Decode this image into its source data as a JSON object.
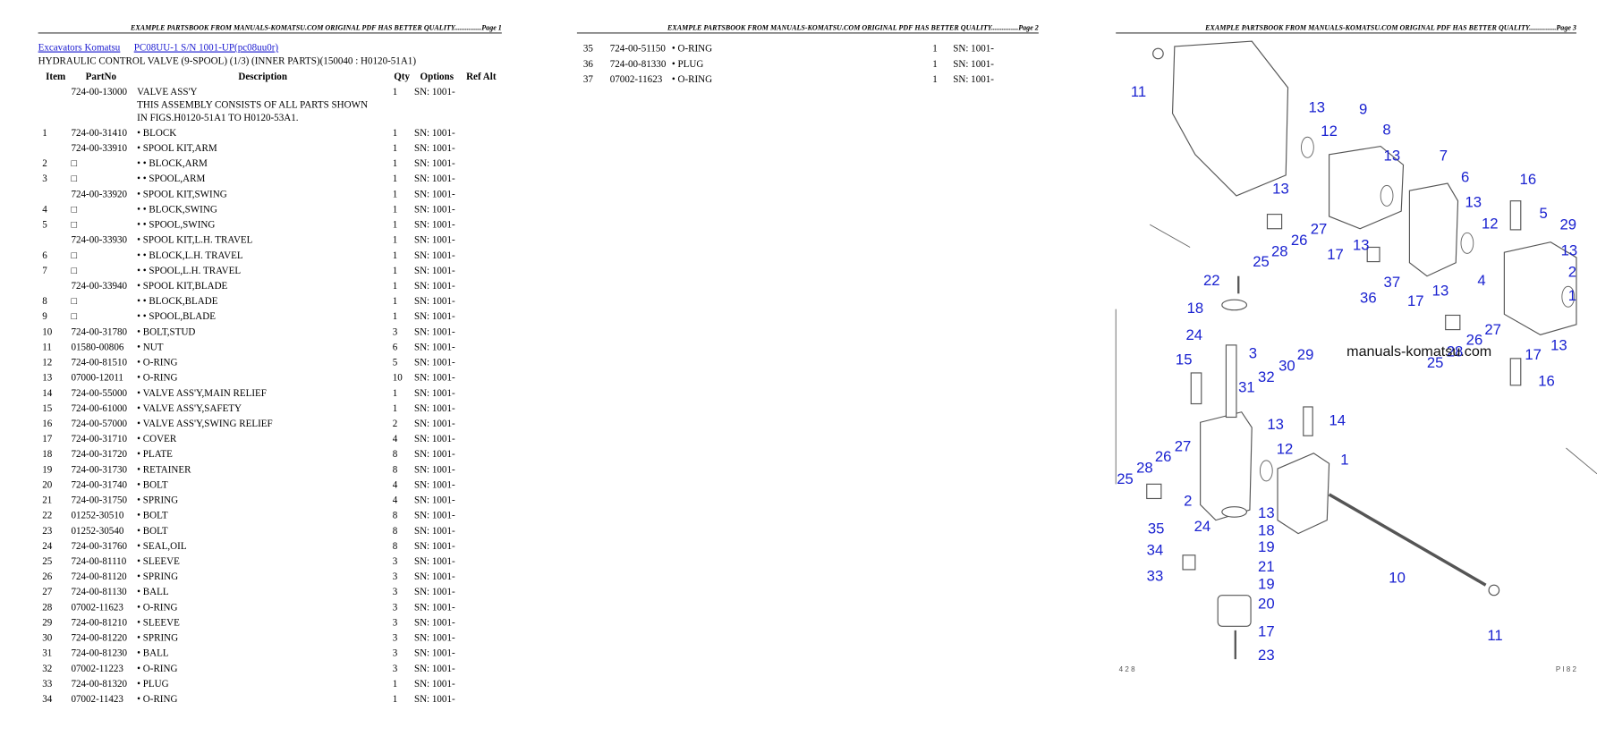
{
  "pages": [
    {
      "header": "EXAMPLE PARTSBOOK FROM MANUALS-KOMATSU.COM ORIGINAL PDF HAS BETTER QUALITY...............Page 1",
      "links": [
        "Excavators Komatsu",
        "PC08UU-1 S/N 1001-UP(pc08uu0r)"
      ],
      "title": "HYDRAULIC CONTROL VALVE (9-SPOOL) (1/3) (INNER PARTS)(150040 : H0120-51A1)",
      "table": {
        "columns": [
          "Item",
          "PartNo",
          "Description",
          "Qty",
          "Options",
          "Ref Alt"
        ],
        "rows": [
          {
            "part": "724-00-13000",
            "desc": "VALVE ASS'Y",
            "qty": "1",
            "options": "SN: 1001-",
            "note": [
              "THIS ASSEMBLY CONSISTS OF ALL PARTS SHOWN",
              "IN FIGS.H0120-51A1 TO H0120-53A1."
            ]
          },
          {
            "item": "1",
            "part": "724-00-31410",
            "desc": "• BLOCK",
            "qty": "1",
            "options": "SN: 1001-"
          },
          {
            "part": "724-00-33910",
            "desc": "• SPOOL KIT,ARM",
            "qty": "1",
            "options": "SN: 1001-"
          },
          {
            "item": "2",
            "part": "□",
            "desc": "• • BLOCK,ARM",
            "qty": "1",
            "options": "SN: 1001-"
          },
          {
            "item": "3",
            "part": "□",
            "desc": "• • SPOOL,ARM",
            "qty": "1",
            "options": "SN: 1001-"
          },
          {
            "part": "724-00-33920",
            "desc": "• SPOOL KIT,SWING",
            "qty": "1",
            "options": "SN: 1001-"
          },
          {
            "item": "4",
            "part": "□",
            "desc": "• • BLOCK,SWING",
            "qty": "1",
            "options": "SN: 1001-"
          },
          {
            "item": "5",
            "part": "□",
            "desc": "• • SPOOL,SWING",
            "qty": "1",
            "options": "SN: 1001-"
          },
          {
            "part": "724-00-33930",
            "desc": "• SPOOL KIT,L.H. TRAVEL",
            "qty": "1",
            "options": "SN: 1001-"
          },
          {
            "item": "6",
            "part": "□",
            "desc": "• • BLOCK,L.H. TRAVEL",
            "qty": "1",
            "options": "SN: 1001-"
          },
          {
            "item": "7",
            "part": "□",
            "desc": "• • SPOOL,L.H. TRAVEL",
            "qty": "1",
            "options": "SN: 1001-"
          },
          {
            "part": "724-00-33940",
            "desc": "• SPOOL KIT,BLADE",
            "qty": "1",
            "options": "SN: 1001-"
          },
          {
            "item": "8",
            "part": "□",
            "desc": "• • BLOCK,BLADE",
            "qty": "1",
            "options": "SN: 1001-"
          },
          {
            "item": "9",
            "part": "□",
            "desc": "• • SPOOL,BLADE",
            "qty": "1",
            "options": "SN: 1001-"
          },
          {
            "item": "10",
            "part": "724-00-31780",
            "desc": "• BOLT,STUD",
            "qty": "3",
            "options": "SN: 1001-"
          },
          {
            "item": "11",
            "part": "01580-00806",
            "desc": "• NUT",
            "qty": "6",
            "options": "SN: 1001-"
          },
          {
            "item": "12",
            "part": "724-00-81510",
            "desc": "• O-RING",
            "qty": "5",
            "options": "SN: 1001-"
          },
          {
            "item": "13",
            "part": "07000-12011",
            "desc": "• O-RING",
            "qty": "10",
            "options": "SN: 1001-"
          },
          {
            "item": "14",
            "part": "724-00-55000",
            "desc": "• VALVE ASS'Y,MAIN RELIEF",
            "qty": "1",
            "options": "SN: 1001-"
          },
          {
            "item": "15",
            "part": "724-00-61000",
            "desc": "• VALVE ASS'Y,SAFETY",
            "qty": "1",
            "options": "SN: 1001-"
          },
          {
            "item": "16",
            "part": "724-00-57000",
            "desc": "• VALVE ASS'Y,SWING RELIEF",
            "qty": "2",
            "options": "SN: 1001-"
          },
          {
            "item": "17",
            "part": "724-00-31710",
            "desc": "• COVER",
            "qty": "4",
            "options": "SN: 1001-"
          },
          {
            "item": "18",
            "part": "724-00-31720",
            "desc": "• PLATE",
            "qty": "8",
            "options": "SN: 1001-"
          },
          {
            "item": "19",
            "part": "724-00-31730",
            "desc": "• RETAINER",
            "qty": "8",
            "options": "SN: 1001-"
          },
          {
            "item": "20",
            "part": "724-00-31740",
            "desc": "• BOLT",
            "qty": "4",
            "options": "SN: 1001-"
          },
          {
            "item": "21",
            "part": "724-00-31750",
            "desc": "• SPRING",
            "qty": "4",
            "options": "SN: 1001-"
          },
          {
            "item": "22",
            "part": "01252-30510",
            "desc": "• BOLT",
            "qty": "8",
            "options": "SN: 1001-"
          },
          {
            "item": "23",
            "part": "01252-30540",
            "desc": "• BOLT",
            "qty": "8",
            "options": "SN: 1001-"
          },
          {
            "item": "24",
            "part": "724-00-31760",
            "desc": "• SEAL,OIL",
            "qty": "8",
            "options": "SN: 1001-"
          },
          {
            "item": "25",
            "part": "724-00-81110",
            "desc": "• SLEEVE",
            "qty": "3",
            "options": "SN: 1001-"
          },
          {
            "item": "26",
            "part": "724-00-81120",
            "desc": "• SPRING",
            "qty": "3",
            "options": "SN: 1001-"
          },
          {
            "item": "27",
            "part": "724-00-81130",
            "desc": "• BALL",
            "qty": "3",
            "options": "SN: 1001-"
          },
          {
            "item": "28",
            "part": "07002-11623",
            "desc": "• O-RING",
            "qty": "3",
            "options": "SN: 1001-"
          },
          {
            "item": "29",
            "part": "724-00-81210",
            "desc": "• SLEEVE",
            "qty": "3",
            "options": "SN: 1001-"
          },
          {
            "item": "30",
            "part": "724-00-81220",
            "desc": "• SPRING",
            "qty": "3",
            "options": "SN: 1001-"
          },
          {
            "item": "31",
            "part": "724-00-81230",
            "desc": "• BALL",
            "qty": "3",
            "options": "SN: 1001-"
          },
          {
            "item": "32",
            "part": "07002-11223",
            "desc": "• O-RING",
            "qty": "3",
            "options": "SN: 1001-"
          },
          {
            "item": "33",
            "part": "724-00-81320",
            "desc": "• PLUG",
            "qty": "1",
            "options": "SN: 1001-"
          },
          {
            "item": "34",
            "part": "07002-11423",
            "desc": "• O-RING",
            "qty": "1",
            "options": "SN: 1001-"
          }
        ]
      }
    },
    {
      "header": "EXAMPLE PARTSBOOK FROM MANUALS-KOMATSU.COM ORIGINAL PDF HAS BETTER QUALITY...............Page 2",
      "table": {
        "rows": [
          {
            "item": "35",
            "part": "724-00-51150",
            "desc": "• O-RING",
            "qty": "1",
            "options": "SN: 1001-"
          },
          {
            "item": "36",
            "part": "724-00-81330",
            "desc": "• PLUG",
            "qty": "1",
            "options": "SN: 1001-"
          },
          {
            "item": "37",
            "part": "07002-11623",
            "desc": "• O-RING",
            "qty": "1",
            "options": "SN: 1001-"
          }
        ]
      }
    },
    {
      "header": "EXAMPLE PARTSBOOK FROM MANUALS-KOMATSU.COM ORIGINAL PDF HAS BETTER QUALITY...............Page 3",
      "diagram": {
        "callouts": [
          "11",
          "13",
          "9",
          "12",
          "8",
          "13",
          "7",
          "13",
          "6",
          "16",
          "13",
          "5",
          "12",
          "29",
          "27",
          "26",
          "28",
          "25",
          "17",
          "13",
          "13",
          "37",
          "2",
          "22",
          "4",
          "36",
          "17",
          "13",
          "1",
          "18",
          "27",
          "24",
          "26",
          "13",
          "3",
          "28",
          "17",
          "15",
          "25",
          "30",
          "29",
          "32",
          "16",
          "31",
          "14",
          "13",
          "27",
          "12",
          "1",
          "26",
          "28",
          "25",
          "2",
          "13",
          "24",
          "18",
          "35",
          "19",
          "34",
          "21",
          "19",
          "33",
          "10",
          "20",
          "17",
          "11",
          "23"
        ],
        "watermark": "manuals-komatsu.com",
        "footer": [
          "4 2 8",
          "P I 8 2"
        ]
      }
    }
  ]
}
